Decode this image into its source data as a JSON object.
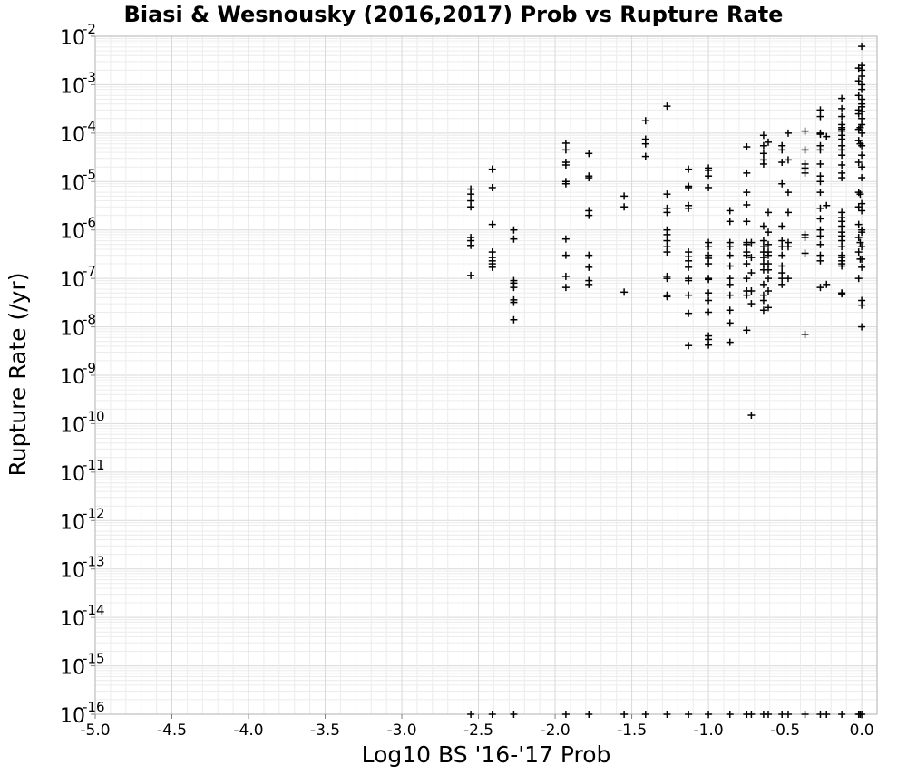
{
  "chart_data": {
    "type": "scatter",
    "title": "Biasi & Wesnousky (2016,2017) Prob vs Rupture Rate",
    "xlabel": "Log10 BS '16-'17 Prob",
    "ylabel": "Rupture Rate (/yr)",
    "xlim": [
      -5.0,
      0.1
    ],
    "ylim": [
      1e-16,
      0.01
    ],
    "yscale": "log",
    "grid": true,
    "marker": "plus",
    "marker_color": "#000000",
    "x_ticks": [
      "-5.0",
      "-4.5",
      "-4.0",
      "-3.5",
      "-3.0",
      "-2.5",
      "-2.0",
      "-1.5",
      "-1.0",
      "-0.5",
      "0.0"
    ],
    "y_ticks": [
      {
        "base": "10",
        "exp": "-2"
      },
      {
        "base": "10",
        "exp": "-3"
      },
      {
        "base": "10",
        "exp": "-4"
      },
      {
        "base": "10",
        "exp": "-5"
      },
      {
        "base": "10",
        "exp": "-6"
      },
      {
        "base": "10",
        "exp": "-7"
      },
      {
        "base": "10",
        "exp": "-8"
      },
      {
        "base": "10",
        "exp": "-9"
      },
      {
        "base": "10",
        "exp": "-10"
      },
      {
        "base": "10",
        "exp": "-11"
      },
      {
        "base": "10",
        "exp": "-12"
      },
      {
        "base": "10",
        "exp": "-13"
      },
      {
        "base": "10",
        "exp": "-14"
      },
      {
        "base": "10",
        "exp": "-15"
      },
      {
        "base": "10",
        "exp": "-16"
      }
    ],
    "points": [
      [
        -2.55,
        7e-06
      ],
      [
        -2.55,
        5.5e-06
      ],
      [
        -2.55,
        4e-06
      ],
      [
        -2.55,
        3e-06
      ],
      [
        -2.55,
        7e-07
      ],
      [
        -2.55,
        6e-07
      ],
      [
        -2.55,
        4.8e-07
      ],
      [
        -2.55,
        1.15e-07
      ],
      [
        -2.55,
        1e-16
      ],
      [
        -2.41,
        1.8e-05
      ],
      [
        -2.41,
        7.5e-06
      ],
      [
        -2.41,
        1.3e-06
      ],
      [
        -2.41,
        3.5e-07
      ],
      [
        -2.41,
        2.7e-07
      ],
      [
        -2.41,
        2.3e-07
      ],
      [
        -2.41,
        2e-07
      ],
      [
        -2.41,
        1.7e-07
      ],
      [
        -2.41,
        1e-16
      ],
      [
        -2.27,
        1e-06
      ],
      [
        -2.27,
        6.5e-07
      ],
      [
        -2.27,
        9e-08
      ],
      [
        -2.27,
        8e-08
      ],
      [
        -2.27,
        6.5e-08
      ],
      [
        -2.27,
        3.6e-08
      ],
      [
        -2.27,
        3.2e-08
      ],
      [
        -2.27,
        1.4e-08
      ],
      [
        -2.27,
        1e-16
      ],
      [
        -1.93,
        6.2e-05
      ],
      [
        -1.93,
        4.5e-05
      ],
      [
        -1.93,
        2.5e-05
      ],
      [
        -1.93,
        2.2e-05
      ],
      [
        -1.93,
        1e-05
      ],
      [
        -1.93,
        9e-06
      ],
      [
        -1.93,
        6.5e-07
      ],
      [
        -1.93,
        3e-07
      ],
      [
        -1.93,
        1.1e-07
      ],
      [
        -1.93,
        6.5e-08
      ],
      [
        -1.93,
        1e-16
      ],
      [
        -1.78,
        3.8e-05
      ],
      [
        -1.78,
        1.3e-05
      ],
      [
        -1.78,
        1.2e-05
      ],
      [
        -1.78,
        2.5e-06
      ],
      [
        -1.78,
        2e-06
      ],
      [
        -1.78,
        3e-07
      ],
      [
        -1.78,
        1.7e-07
      ],
      [
        -1.78,
        9e-08
      ],
      [
        -1.78,
        7.5e-08
      ],
      [
        -1.78,
        1e-16
      ],
      [
        -1.55,
        5e-06
      ],
      [
        -1.55,
        3e-06
      ],
      [
        -1.55,
        5.2e-08
      ],
      [
        -1.55,
        1e-16
      ],
      [
        -1.41,
        0.00018
      ],
      [
        -1.41,
        7.5e-05
      ],
      [
        -1.41,
        6e-05
      ],
      [
        -1.41,
        3.3e-05
      ],
      [
        -1.41,
        1e-16
      ],
      [
        -1.27,
        0.00036
      ],
      [
        -1.27,
        5.5e-06
      ],
      [
        -1.27,
        2.8e-06
      ],
      [
        -1.27,
        2.3e-06
      ],
      [
        -1.27,
        1e-06
      ],
      [
        -1.27,
        8e-07
      ],
      [
        -1.27,
        6e-07
      ],
      [
        -1.27,
        4.5e-07
      ],
      [
        -1.27,
        3.5e-07
      ],
      [
        -1.27,
        1.1e-07
      ],
      [
        -1.27,
        1e-07
      ],
      [
        -1.27,
        4.5e-08
      ],
      [
        -1.27,
        4.2e-08
      ],
      [
        -1.27,
        1e-16
      ],
      [
        -1.13,
        1.8e-05
      ],
      [
        -1.13,
        8e-06
      ],
      [
        -1.13,
        7.5e-06
      ],
      [
        -1.13,
        3.2e-06
      ],
      [
        -1.13,
        2.8e-06
      ],
      [
        -1.13,
        3.5e-07
      ],
      [
        -1.13,
        2.8e-07
      ],
      [
        -1.13,
        2.3e-07
      ],
      [
        -1.13,
        1.7e-07
      ],
      [
        -1.13,
        1e-07
      ],
      [
        -1.13,
        9e-08
      ],
      [
        -1.13,
        4.5e-08
      ],
      [
        -1.13,
        1.9e-08
      ],
      [
        -1.13,
        4.1e-09
      ],
      [
        -1.13,
        1e-16
      ],
      [
        -1.0,
        1.9e-05
      ],
      [
        -1.0,
        1.7e-05
      ],
      [
        -1.0,
        1.3e-05
      ],
      [
        -1.0,
        7.5e-06
      ],
      [
        -1.0,
        5.5e-07
      ],
      [
        -1.0,
        4.5e-07
      ],
      [
        -1.0,
        3e-07
      ],
      [
        -1.0,
        2.6e-07
      ],
      [
        -1.0,
        2e-07
      ],
      [
        -1.0,
        1e-07
      ],
      [
        -1.0,
        9.5e-08
      ],
      [
        -1.0,
        5e-08
      ],
      [
        -1.0,
        3.5e-08
      ],
      [
        -1.0,
        2e-08
      ],
      [
        -1.0,
        6.5e-09
      ],
      [
        -1.0,
        5.5e-09
      ],
      [
        -1.0,
        4.2e-09
      ],
      [
        -1.0,
        1e-16
      ],
      [
        -0.86,
        2.5e-06
      ],
      [
        -0.86,
        1.5e-06
      ],
      [
        -0.86,
        5.5e-07
      ],
      [
        -0.86,
        4.5e-07
      ],
      [
        -0.86,
        3e-07
      ],
      [
        -0.86,
        1.8e-07
      ],
      [
        -0.86,
        1e-07
      ],
      [
        -0.86,
        7.5e-08
      ],
      [
        -0.86,
        4.5e-08
      ],
      [
        -0.86,
        2.2e-08
      ],
      [
        -0.86,
        1.2e-08
      ],
      [
        -0.86,
        4.8e-09
      ],
      [
        -0.86,
        1e-16
      ],
      [
        -0.75,
        5.2e-05
      ],
      [
        -0.75,
        1.5e-05
      ],
      [
        -0.75,
        6e-06
      ],
      [
        -0.75,
        3.3e-06
      ],
      [
        -0.75,
        1.5e-06
      ],
      [
        -0.75,
        5.5e-07
      ],
      [
        -0.75,
        5e-07
      ],
      [
        -0.75,
        3.5e-07
      ],
      [
        -0.75,
        3e-07
      ],
      [
        -0.75,
        2e-07
      ],
      [
        -0.75,
        1e-07
      ],
      [
        -0.75,
        5.5e-08
      ],
      [
        -0.75,
        4.5e-08
      ],
      [
        -0.75,
        8.5e-09
      ],
      [
        -0.75,
        1e-16
      ],
      [
        -0.72,
        5.5e-07
      ],
      [
        -0.72,
        2.7e-07
      ],
      [
        -0.72,
        1.3e-07
      ],
      [
        -0.72,
        5.5e-08
      ],
      [
        -0.72,
        3e-08
      ],
      [
        -0.72,
        1.5e-10
      ],
      [
        -0.72,
        1e-16
      ],
      [
        -0.64,
        9e-05
      ],
      [
        -0.64,
        5.5e-05
      ],
      [
        -0.64,
        3.8e-05
      ],
      [
        -0.64,
        2.8e-05
      ],
      [
        -0.64,
        2.3e-05
      ],
      [
        -0.64,
        1.2e-06
      ],
      [
        -0.64,
        6e-07
      ],
      [
        -0.64,
        4.5e-07
      ],
      [
        -0.64,
        3.5e-07
      ],
      [
        -0.64,
        2.7e-07
      ],
      [
        -0.64,
        2e-07
      ],
      [
        -0.64,
        1.5e-07
      ],
      [
        -0.64,
        7.5e-08
      ],
      [
        -0.64,
        4.5e-08
      ],
      [
        -0.64,
        3.5e-08
      ],
      [
        -0.64,
        2.2e-08
      ],
      [
        -0.64,
        1e-16
      ],
      [
        -0.61,
        6.5e-05
      ],
      [
        -0.61,
        2.3e-06
      ],
      [
        -0.61,
        9e-07
      ],
      [
        -0.61,
        5e-07
      ],
      [
        -0.61,
        3.5e-07
      ],
      [
        -0.61,
        3e-07
      ],
      [
        -0.61,
        2e-07
      ],
      [
        -0.61,
        1.5e-07
      ],
      [
        -0.61,
        1e-07
      ],
      [
        -0.61,
        5.5e-08
      ],
      [
        -0.61,
        2.5e-08
      ],
      [
        -0.61,
        1e-16
      ],
      [
        -0.52,
        5.5e-05
      ],
      [
        -0.52,
        4.5e-05
      ],
      [
        -0.52,
        2.5e-05
      ],
      [
        -0.52,
        9e-06
      ],
      [
        -0.52,
        1.2e-06
      ],
      [
        -0.52,
        6e-07
      ],
      [
        -0.52,
        4.5e-07
      ],
      [
        -0.52,
        3e-07
      ],
      [
        -0.52,
        1.8e-07
      ],
      [
        -0.52,
        1.3e-07
      ],
      [
        -0.52,
        1e-07
      ],
      [
        -0.52,
        7.5e-08
      ],
      [
        -0.52,
        1e-16
      ],
      [
        -0.48,
        0.0001
      ],
      [
        -0.48,
        2.8e-05
      ],
      [
        -0.48,
        6e-06
      ],
      [
        -0.48,
        2.3e-06
      ],
      [
        -0.48,
        5.5e-07
      ],
      [
        -0.48,
        4.5e-07
      ],
      [
        -0.48,
        1e-07
      ],
      [
        -0.48,
        1e-16
      ],
      [
        -0.37,
        0.00011
      ],
      [
        -0.37,
        4.5e-05
      ],
      [
        -0.37,
        2.3e-05
      ],
      [
        -0.37,
        1.9e-05
      ],
      [
        -0.37,
        1.5e-05
      ],
      [
        -0.37,
        8e-07
      ],
      [
        -0.37,
        7e-07
      ],
      [
        -0.37,
        3.3e-07
      ],
      [
        -0.37,
        7e-09
      ],
      [
        -0.37,
        1e-16
      ],
      [
        -0.27,
        0.0003
      ],
      [
        -0.27,
        0.00022
      ],
      [
        -0.27,
        0.0001
      ],
      [
        -0.27,
        9.5e-05
      ],
      [
        -0.27,
        5.5e-05
      ],
      [
        -0.27,
        4.5e-05
      ],
      [
        -0.27,
        2.3e-05
      ],
      [
        -0.27,
        1.3e-05
      ],
      [
        -0.27,
        1e-05
      ],
      [
        -0.27,
        6e-06
      ],
      [
        -0.27,
        2.8e-06
      ],
      [
        -0.27,
        1.7e-06
      ],
      [
        -0.27,
        1e-06
      ],
      [
        -0.27,
        7.5e-07
      ],
      [
        -0.27,
        5e-07
      ],
      [
        -0.27,
        3e-07
      ],
      [
        -0.27,
        2.3e-07
      ],
      [
        -0.27,
        6.5e-08
      ],
      [
        -0.27,
        1e-16
      ],
      [
        -0.23,
        8.5e-05
      ],
      [
        -0.23,
        3.2e-06
      ],
      [
        -0.23,
        7.5e-08
      ],
      [
        -0.23,
        1e-16
      ],
      [
        -0.13,
        0.00052
      ],
      [
        -0.13,
        0.00032
      ],
      [
        -0.13,
        0.00022
      ],
      [
        -0.13,
        0.00015
      ],
      [
        -0.13,
        0.00013
      ],
      [
        -0.13,
        0.00012
      ],
      [
        -0.13,
        0.00011
      ],
      [
        -0.13,
        9e-05
      ],
      [
        -0.13,
        7.5e-05
      ],
      [
        -0.13,
        5.5e-05
      ],
      [
        -0.13,
        4.5e-05
      ],
      [
        -0.13,
        3.5e-05
      ],
      [
        -0.13,
        2.2e-05
      ],
      [
        -0.13,
        1.5e-05
      ],
      [
        -0.13,
        1.2e-05
      ],
      [
        -0.13,
        2.3e-06
      ],
      [
        -0.13,
        1.8e-06
      ],
      [
        -0.13,
        1.5e-06
      ],
      [
        -0.13,
        1.2e-06
      ],
      [
        -0.13,
        9e-07
      ],
      [
        -0.13,
        7.5e-07
      ],
      [
        -0.13,
        6e-07
      ],
      [
        -0.13,
        4.5e-07
      ],
      [
        -0.13,
        3e-07
      ],
      [
        -0.13,
        2.7e-07
      ],
      [
        -0.13,
        2.3e-07
      ],
      [
        -0.13,
        2e-07
      ],
      [
        -0.13,
        1.8e-07
      ],
      [
        -0.13,
        5e-08
      ],
      [
        -0.13,
        4.8e-08
      ],
      [
        -0.13,
        1e-16
      ],
      [
        -0.02,
        0.0022
      ],
      [
        -0.02,
        0.0012
      ],
      [
        -0.02,
        0.0006
      ],
      [
        -0.02,
        0.0003
      ],
      [
        -0.02,
        0.00025
      ],
      [
        -0.02,
        0.00012
      ],
      [
        -0.02,
        7e-05
      ],
      [
        -0.02,
        2.5e-05
      ],
      [
        -0.02,
        6e-06
      ],
      [
        -0.02,
        3e-06
      ],
      [
        -0.02,
        1.3e-06
      ],
      [
        -0.02,
        7e-07
      ],
      [
        -0.02,
        3.5e-07
      ],
      [
        -0.02,
        1e-07
      ],
      [
        -0.02,
        1e-16
      ],
      [
        -0.01,
        0.00013
      ],
      [
        -0.01,
        6e-05
      ],
      [
        -0.01,
        5.5e-06
      ],
      [
        -0.01,
        5.5e-07
      ],
      [
        -0.01,
        2.5e-07
      ],
      [
        -0.01,
        1e-16
      ],
      [
        0.0,
        0.0062
      ],
      [
        0.0,
        0.0025
      ],
      [
        0.0,
        0.002
      ],
      [
        0.0,
        0.0015
      ],
      [
        0.0,
        0.001
      ],
      [
        0.0,
        0.0008
      ],
      [
        0.0,
        0.0005
      ],
      [
        0.0,
        0.0004
      ],
      [
        0.0,
        0.00035
      ],
      [
        0.0,
        0.00028
      ],
      [
        0.0,
        0.0002
      ],
      [
        0.0,
        0.00015
      ],
      [
        0.0,
        0.0001
      ],
      [
        0.0,
        5.5e-05
      ],
      [
        0.0,
        3.5e-05
      ],
      [
        0.0,
        2e-05
      ],
      [
        0.0,
        1.2e-05
      ],
      [
        0.0,
        3.5e-06
      ],
      [
        0.0,
        2.5e-06
      ],
      [
        0.0,
        1e-06
      ],
      [
        0.0,
        9e-07
      ],
      [
        0.0,
        4.5e-07
      ],
      [
        0.0,
        2.5e-07
      ],
      [
        0.0,
        1.7e-07
      ],
      [
        0.0,
        3.5e-08
      ],
      [
        0.0,
        2.8e-08
      ],
      [
        0.0,
        1e-08
      ],
      [
        0.0,
        1e-16
      ]
    ]
  }
}
